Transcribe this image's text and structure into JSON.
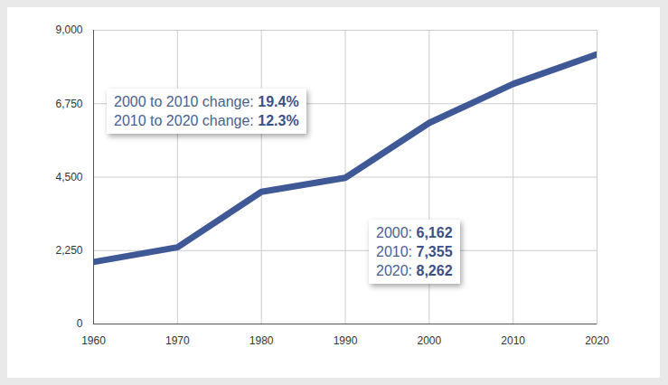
{
  "chart_data": {
    "type": "line",
    "x": [
      1960,
      1970,
      1980,
      1990,
      2000,
      2010,
      2020
    ],
    "values": [
      1900,
      2350,
      4050,
      4480,
      6162,
      7355,
      8262
    ],
    "color": "#3f5896",
    "xlim": [
      1960,
      2020
    ],
    "xticks": [
      1960,
      1970,
      1980,
      1990,
      2000,
      2010,
      2020
    ],
    "ylim": [
      0,
      9000
    ],
    "yticks": [
      0,
      {
        "value": 2250,
        "label": "2,250"
      },
      {
        "value": 4500,
        "label": "4,500"
      },
      {
        "value": 6750,
        "label": "6,750"
      },
      {
        "value": 9000,
        "label": "9,000"
      }
    ],
    "grid": true,
    "annotations": [
      [
        "2000 to 2010 change: 19.4%",
        "2010 to 2020 change: 12.3%"
      ],
      [
        "2000: 6,162",
        "2010: 7,355",
        "2020: 8,262"
      ]
    ]
  }
}
